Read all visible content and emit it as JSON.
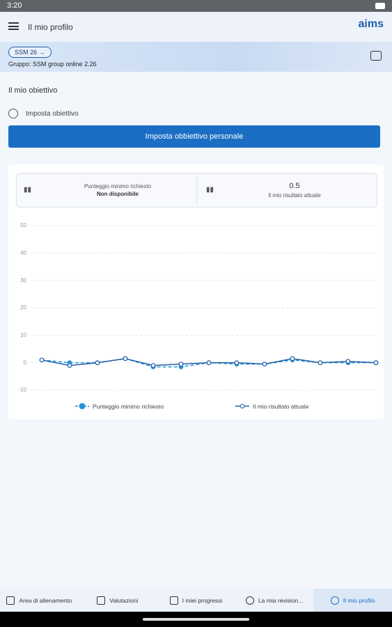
{
  "status_bar": {
    "time": "3:20"
  },
  "app_bar": {
    "title": "Il mio profilo",
    "logo": "aims"
  },
  "banner": {
    "chip": "SSM 26",
    "group": "Gruppo: SSM group online 2.26"
  },
  "goal": {
    "heading": "Il mio obiettivo",
    "set_label": "Imposta obiettivo",
    "button": "Imposta obbiettivo personale"
  },
  "stats": [
    {
      "label": "Punteggio minimo richiesto",
      "value": "Non disponibile"
    },
    {
      "value": 0.5,
      "label": "Il mio risultato attuale"
    }
  ],
  "chart_data": {
    "type": "line",
    "categories": [
      null,
      null,
      null,
      null,
      null,
      null,
      null,
      null,
      null,
      null,
      null,
      null,
      null
    ],
    "ylim": [
      -10,
      50
    ],
    "yticks": [
      -10,
      0,
      10,
      20,
      30,
      40,
      50
    ],
    "grid": true,
    "series": [
      {
        "name": "Punteggio minimo richiesto",
        "color": "#2a93d5",
        "line_style": "dashed",
        "marker": "filled",
        "values": [
          1,
          0,
          0,
          1.5,
          -1.5,
          -1.5,
          0,
          -0.5,
          -0.5,
          1,
          0,
          0,
          0
        ]
      },
      {
        "name": "Il mio risultato attuale",
        "color": "#1f5fa8",
        "line_style": "solid",
        "marker": "open",
        "values": [
          1,
          -1,
          0,
          1.5,
          -1,
          -0.5,
          0,
          0,
          -0.5,
          1.5,
          0,
          0.5,
          0
        ]
      }
    ]
  },
  "nav": [
    "Area di allenamento",
    "Valutazioni",
    "I miei progressi",
    "La mia revision...",
    "Il mio profilo"
  ]
}
